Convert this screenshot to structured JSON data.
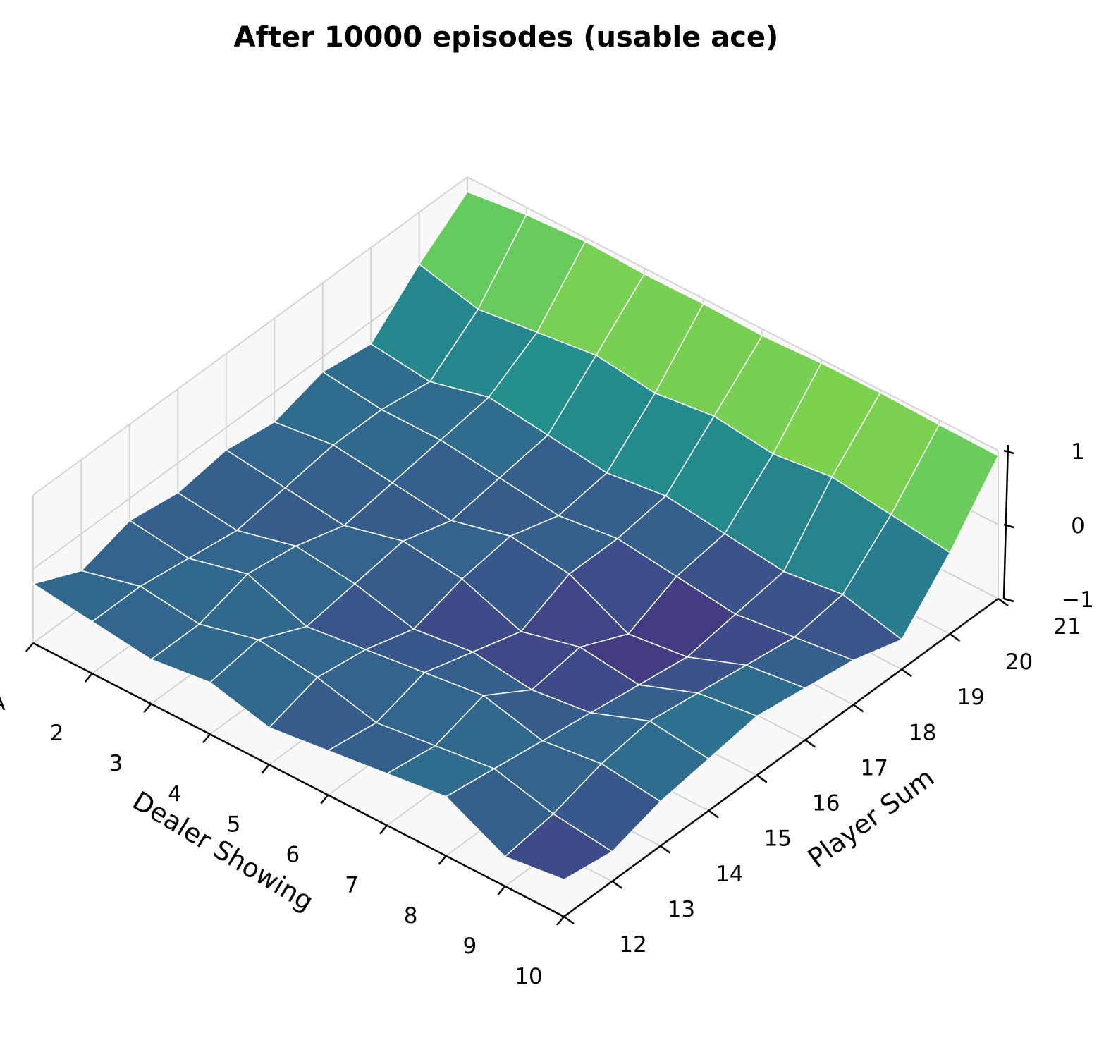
{
  "chart_data": {
    "type": "surface3d",
    "title": "After 10000 episodes (usable ace)",
    "xlabel": "Dealer Showing",
    "ylabel": "Player Sum",
    "zlabel": "",
    "x_tick_labels": [
      "A",
      "2",
      "3",
      "4",
      "5",
      "6",
      "7",
      "8",
      "9",
      "10"
    ],
    "y_tick_labels": [
      "12",
      "13",
      "14",
      "15",
      "16",
      "17",
      "18",
      "19",
      "20",
      "21"
    ],
    "z_ticks": [
      1,
      0,
      -1
    ],
    "z_tick_labels": [
      "1",
      "0",
      "−1"
    ],
    "zlim": [
      -1,
      1
    ],
    "colormap": "viridis",
    "edge_color": "#ffffff",
    "grid": true,
    "values": [
      [
        -0.2,
        -0.5,
        -0.3,
        -0.4,
        -0.3,
        -0.4,
        -0.2,
        -0.3,
        0.3,
        0.8
      ],
      [
        -0.3,
        -0.3,
        -0.4,
        -0.5,
        -0.4,
        -0.3,
        -0.3,
        -0.4,
        0.1,
        0.9
      ],
      [
        -0.4,
        -0.4,
        -0.2,
        -0.3,
        -0.5,
        -0.4,
        -0.3,
        -0.2,
        0.2,
        0.95
      ],
      [
        -0.3,
        -0.2,
        -0.5,
        -0.4,
        -0.3,
        -0.5,
        -0.4,
        -0.3,
        0.3,
        0.92
      ],
      [
        -0.5,
        -0.3,
        -0.4,
        -0.6,
        -0.4,
        -0.3,
        -0.5,
        -0.4,
        0.2,
        0.93
      ],
      [
        -0.4,
        -0.5,
        -0.3,
        -0.5,
        -0.7,
        -0.4,
        -0.4,
        -0.3,
        0.3,
        0.91
      ],
      [
        -0.3,
        -0.4,
        -0.2,
        -0.6,
        -0.5,
        -0.8,
        -0.5,
        -0.4,
        0.2,
        0.95
      ],
      [
        -0.2,
        -0.3,
        -0.4,
        -0.5,
        -0.6,
        -0.7,
        -0.6,
        -0.5,
        0.3,
        0.96
      ],
      [
        -0.6,
        -0.5,
        -0.3,
        -0.2,
        -0.3,
        -0.4,
        -0.5,
        -0.4,
        0.2,
        0.94
      ],
      [
        -0.5,
        -0.6,
        -0.4,
        -0.3,
        -0.2,
        -0.3,
        -0.4,
        -0.6,
        0.1,
        0.93
      ]
    ]
  }
}
